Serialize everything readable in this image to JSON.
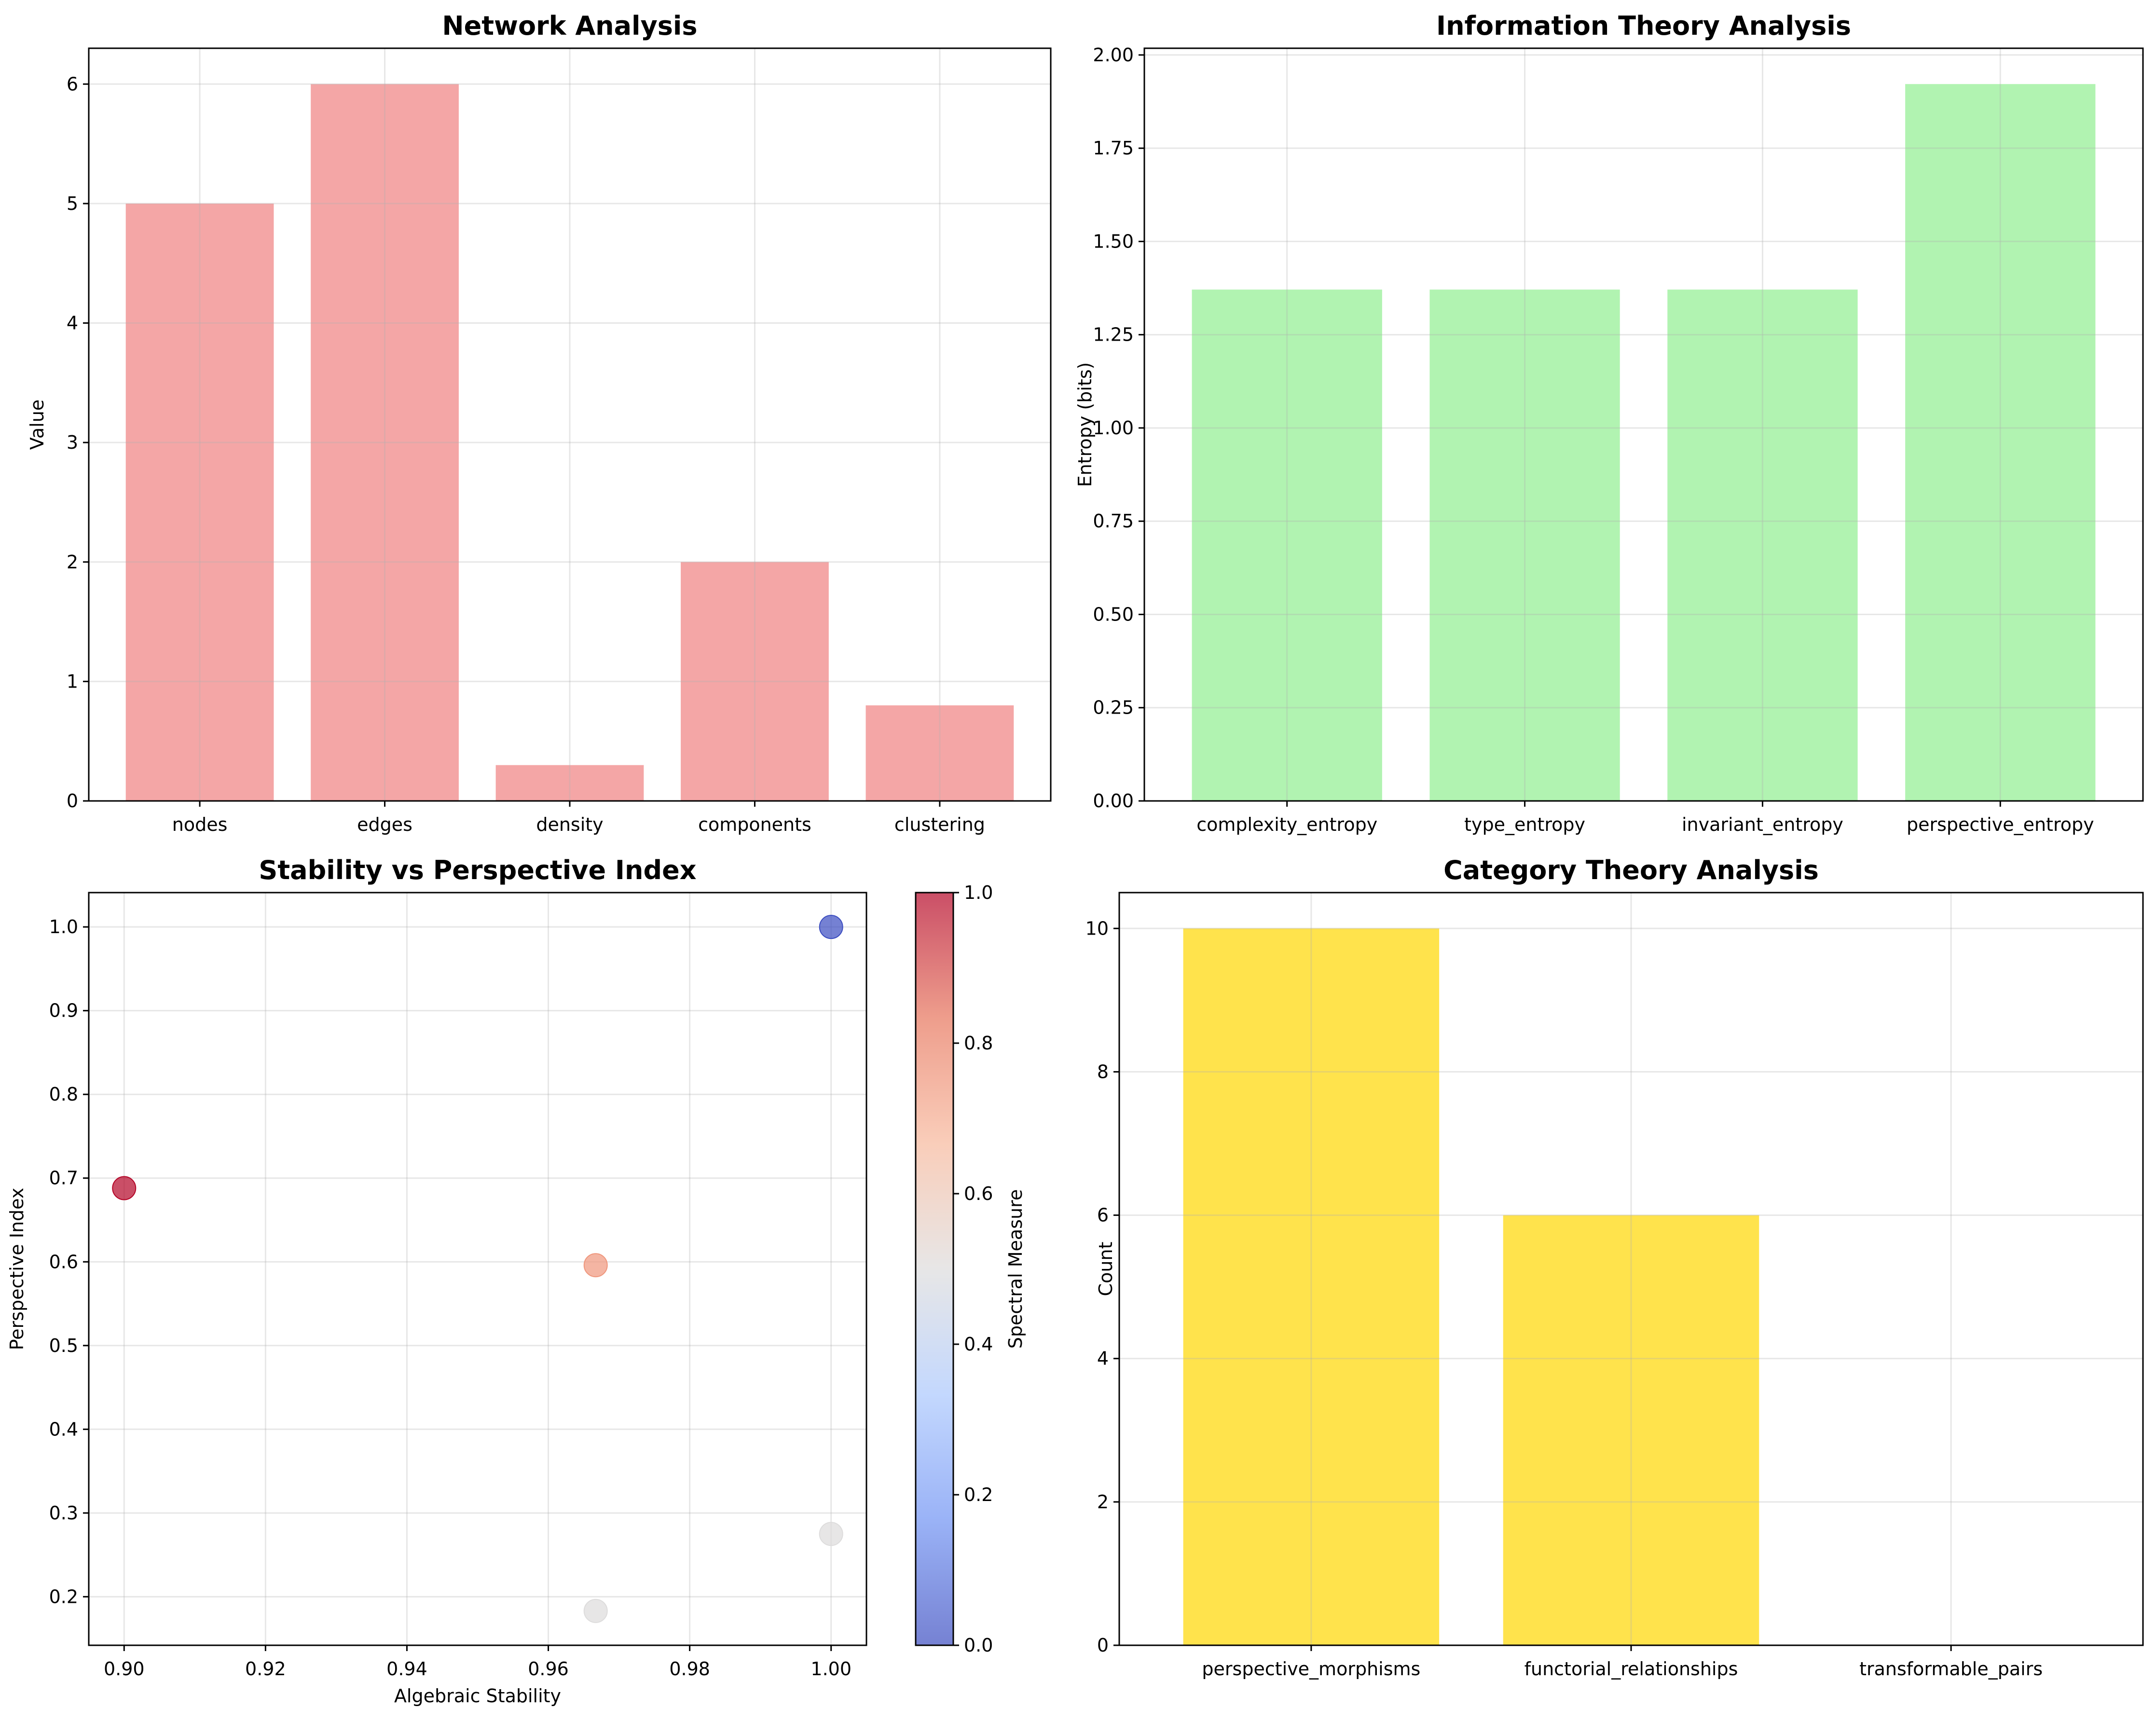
{
  "chart_data": [
    {
      "id": "network",
      "type": "bar",
      "title": "Network Analysis",
      "xlabel": "",
      "ylabel": "Value",
      "categories": [
        "nodes",
        "edges",
        "density",
        "components",
        "clustering"
      ],
      "values": [
        5,
        6,
        0.3,
        2,
        0.8
      ],
      "ylim": [
        0,
        6.3
      ],
      "yticks": [
        0,
        1,
        2,
        3,
        4,
        5,
        6
      ],
      "ytick_labels": [
        "0",
        "1",
        "2",
        "3",
        "4",
        "5",
        "6"
      ],
      "color": "#f08080",
      "grid": true
    },
    {
      "id": "information",
      "type": "bar",
      "title": "Information Theory Analysis",
      "xlabel": "",
      "ylabel": "Entropy (bits)",
      "categories": [
        "complexity_entropy",
        "type_entropy",
        "invariant_entropy",
        "perspective_entropy"
      ],
      "values": [
        1.371,
        1.371,
        1.371,
        1.922
      ],
      "ylim": [
        0,
        2.018
      ],
      "yticks": [
        0,
        0.25,
        0.5,
        0.75,
        1.0,
        1.25,
        1.5,
        1.75,
        2.0
      ],
      "ytick_labels": [
        "0.00",
        "0.25",
        "0.50",
        "0.75",
        "1.00",
        "1.25",
        "1.50",
        "1.75",
        "2.00"
      ],
      "color": "#90ee90",
      "grid": true
    },
    {
      "id": "stability",
      "type": "scatter",
      "title": "Stability vs Perspective Index",
      "xlabel": "Algebraic Stability",
      "ylabel": "Perspective Index",
      "points": [
        {
          "x": 0.9,
          "y": 0.688,
          "c": 1.0
        },
        {
          "x": 0.9667,
          "y": 0.596,
          "c": 0.75
        },
        {
          "x": 1.0,
          "y": 1.0,
          "c": 0.0
        },
        {
          "x": 1.0,
          "y": 0.275,
          "c": 0.5
        },
        {
          "x": 0.9667,
          "y": 0.183,
          "c": 0.5
        }
      ],
      "xlim": [
        0.895,
        1.005
      ],
      "ylim": [
        0.142,
        1.041
      ],
      "xticks": [
        0.9,
        0.92,
        0.94,
        0.96,
        0.98,
        1.0
      ],
      "xtick_labels": [
        "0.90",
        "0.92",
        "0.94",
        "0.96",
        "0.98",
        "1.00"
      ],
      "yticks": [
        0.2,
        0.3,
        0.4,
        0.5,
        0.6,
        0.7,
        0.8,
        0.9,
        1.0
      ],
      "ytick_labels": [
        "0.2",
        "0.3",
        "0.4",
        "0.5",
        "0.6",
        "0.7",
        "0.8",
        "0.9",
        "1.0"
      ],
      "colorbar": {
        "label": "Spectral Measure",
        "range": [
          0,
          1
        ],
        "ticks": [
          0,
          0.2,
          0.4,
          0.6,
          0.8,
          1.0
        ],
        "tick_labels": [
          "0.0",
          "0.2",
          "0.4",
          "0.6",
          "0.8",
          "1.0"
        ],
        "colormap": "coolwarm",
        "stops": [
          "#3b4cc0",
          "#6f92f3",
          "#aac7fd",
          "#dddcdc",
          "#f7b89c",
          "#e7745b",
          "#b40426"
        ]
      },
      "grid": true
    },
    {
      "id": "category",
      "type": "bar",
      "title": "Category Theory Analysis",
      "xlabel": "",
      "ylabel": "Count",
      "categories": [
        "perspective_morphisms",
        "functorial_relationships",
        "transformable_pairs"
      ],
      "values": [
        10,
        6,
        0
      ],
      "ylim": [
        0,
        10.5
      ],
      "yticks": [
        0,
        2,
        4,
        6,
        8,
        10
      ],
      "ytick_labels": [
        "0",
        "2",
        "4",
        "6",
        "8",
        "10"
      ],
      "color": "#ffd700",
      "grid": true
    }
  ]
}
